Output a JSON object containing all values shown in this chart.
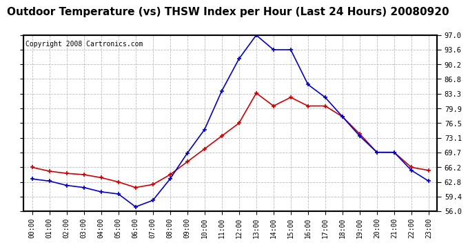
{
  "title": "Outdoor Temperature (vs) THSW Index per Hour (Last 24 Hours) 20080920",
  "copyright": "Copyright 2008 Cartronics.com",
  "hours": [
    0,
    1,
    2,
    3,
    4,
    5,
    6,
    7,
    8,
    9,
    10,
    11,
    12,
    13,
    14,
    15,
    16,
    17,
    18,
    19,
    20,
    21,
    22,
    23
  ],
  "temp": [
    66.2,
    65.3,
    64.8,
    64.5,
    63.8,
    62.8,
    61.5,
    62.2,
    64.5,
    67.5,
    70.5,
    73.5,
    76.5,
    83.5,
    80.5,
    82.5,
    80.5,
    80.5,
    78.0,
    74.0,
    69.7,
    69.7,
    66.2,
    65.5
  ],
  "thsw": [
    63.5,
    63.0,
    62.0,
    61.5,
    60.5,
    60.0,
    57.0,
    58.5,
    63.5,
    69.5,
    75.0,
    84.0,
    91.5,
    97.0,
    93.6,
    93.6,
    85.5,
    82.5,
    78.0,
    73.5,
    69.7,
    69.7,
    65.5,
    63.0
  ],
  "temp_color": "#cc0000",
  "thsw_color": "#0000cc",
  "bg_color": "#ffffff",
  "grid_color": "#bbbbbb",
  "ylim": [
    56.0,
    97.0
  ],
  "yticks": [
    56.0,
    59.4,
    62.8,
    66.2,
    69.7,
    73.1,
    76.5,
    79.9,
    83.3,
    86.8,
    90.2,
    93.6,
    97.0
  ],
  "title_fontsize": 11,
  "copyright_fontsize": 7,
  "tick_fontsize": 7.5,
  "xtick_fontsize": 7
}
